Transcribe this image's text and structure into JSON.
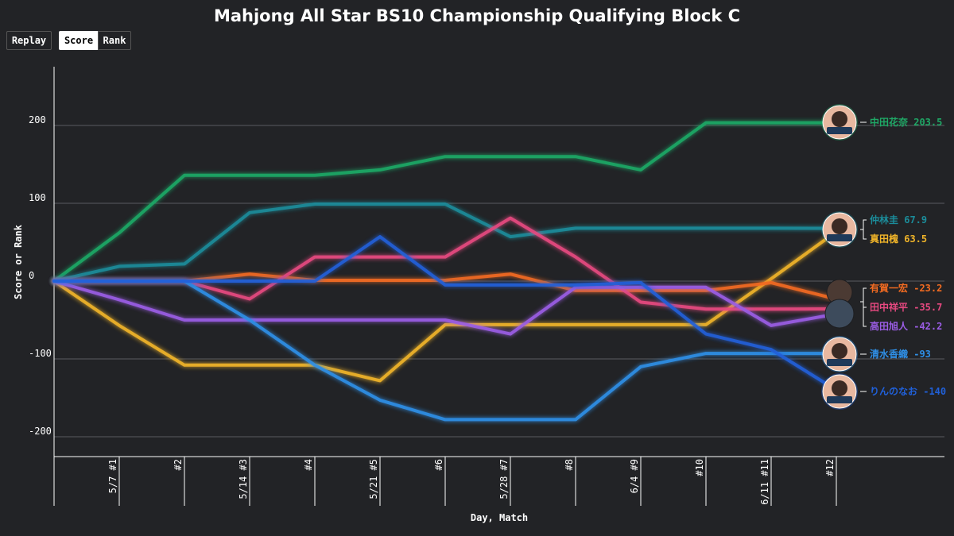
{
  "title": "Mahjong All Star BS10 Championship Qualifying Block C",
  "buttons": {
    "replay": "Replay",
    "score": "Score",
    "rank": "Rank"
  },
  "chart_data": {
    "type": "line",
    "title": "Mahjong All Star BS10 Championship Qualifying Block C",
    "xlabel": "Day, Match",
    "ylabel": "Score or Rank",
    "x_ticks": [
      "5/7 #1",
      "#2",
      "5/14 #3",
      "#4",
      "5/21 #5",
      "#6",
      "5/28 #7",
      "#8",
      "6/4 #9",
      "#10",
      "6/11 #11",
      "#12"
    ],
    "y_ticks": [
      200,
      100,
      0,
      -100,
      -200
    ],
    "ylim": [
      -225,
      275
    ],
    "grid": true,
    "legend": "end-of-line labels",
    "series": [
      {
        "name": "中田花奈",
        "final": "203.5",
        "color": "#1fa866",
        "values": [
          0,
          62,
          136,
          136,
          136,
          143,
          160,
          160,
          160,
          143,
          203.5,
          203.5,
          203.5
        ]
      },
      {
        "name": "仲林圭",
        "final": "67.9",
        "color": "#1b8c9a",
        "values": [
          0,
          19,
          22,
          88,
          99,
          99,
          99,
          57,
          68,
          68,
          68,
          68,
          67.9
        ]
      },
      {
        "name": "真田槐",
        "final": "63.5",
        "color": "#f0b429",
        "values": [
          0,
          -57,
          -108,
          -108,
          -108,
          -128,
          -56,
          -56,
          -56,
          -56,
          -56,
          3,
          63.5
        ]
      },
      {
        "name": "有賀一宏",
        "final": "-23.2",
        "color": "#f26b21",
        "values": [
          0,
          0,
          0,
          9,
          1,
          1,
          1,
          9,
          -12,
          -12,
          -12,
          -2,
          -23.2
        ]
      },
      {
        "name": "田中祥平",
        "final": "-35.7",
        "color": "#e64980",
        "values": [
          0,
          0,
          0,
          -23,
          31,
          31,
          31,
          81,
          31,
          -27,
          -36,
          -36,
          -35.7
        ]
      },
      {
        "name": "高田旭人",
        "final": "-42.2",
        "color": "#9b5de5",
        "values": [
          0,
          -24,
          -50,
          -50,
          -50,
          -50,
          -50,
          -68,
          -8,
          -8,
          -8,
          -57,
          -42.2
        ]
      },
      {
        "name": "清水香織",
        "final": "-93",
        "color": "#2f8fe6",
        "values": [
          0,
          0,
          0,
          -50,
          -108,
          -153,
          -178,
          -178,
          -178,
          -110,
          -93,
          -93,
          -93
        ]
      },
      {
        "name": "りんのなお",
        "final": "-140",
        "color": "#2060d9",
        "values": [
          0,
          0,
          0,
          0,
          0,
          57,
          -5,
          -5,
          -5,
          -2,
          -68,
          -88,
          -140
        ]
      }
    ]
  }
}
